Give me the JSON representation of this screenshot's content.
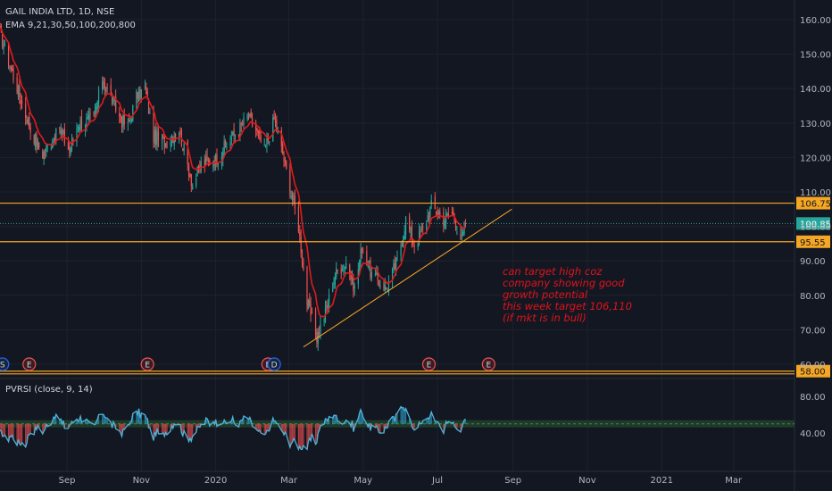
{
  "header": {
    "title": "GAIL INDIA LTD, 1D, NSE",
    "indicator": "EMA 9,21,30,50,100,200,800"
  },
  "colors": {
    "background": "#131722",
    "up": "#26a69a",
    "down": "#ef5350",
    "ema": "#e01a1a",
    "level_line": "#f5a623",
    "current_price": "#26a69a",
    "rsi_line": "#4fb3d9",
    "annotation": "#e0131b"
  },
  "annotation": {
    "lines": [
      "can target high coz",
      "company showing good",
      "growth potential",
      "this week target 106,110",
      "(if mkt is in bull)"
    ]
  },
  "events": [
    {
      "label": "S",
      "date": "2019-07-10"
    },
    {
      "label": "E",
      "date": "2019-08-01"
    },
    {
      "label": "E",
      "date": "2019-11-06"
    },
    {
      "label": "E",
      "date": "2020-02-13"
    },
    {
      "label": "D",
      "date": "2020-02-18"
    },
    {
      "label": "E",
      "date": "2020-06-24"
    },
    {
      "label": "E",
      "date": "2020-08-12"
    }
  ],
  "chart_data": [
    {
      "type": "candlestick",
      "title": "GAIL INDIA LTD, 1D, NSE",
      "x_tick_labels": [
        "Sep",
        "Nov",
        "2020",
        "Mar",
        "May",
        "Jul",
        "Sep",
        "Nov",
        "2021",
        "Mar"
      ],
      "x_tick_dates": [
        "2019-09-01",
        "2019-11-01",
        "2020-01-01",
        "2020-03-01",
        "2020-05-01",
        "2020-07-01",
        "2020-09-01",
        "2020-11-01",
        "2021-01-01",
        "2021-03-01"
      ],
      "x_range": [
        "2019-07-08",
        "2021-04-20"
      ],
      "y_tick_labels": [
        "60.00",
        "70.00",
        "80.00",
        "90.00",
        "100.00",
        "110.00",
        "120.00",
        "130.00",
        "140.00",
        "150.00",
        "160.00"
      ],
      "ylim": [
        57,
        163
      ],
      "price_path": [
        [
          "2019-07-08",
          156
        ],
        [
          "2019-07-22",
          140
        ],
        [
          "2019-08-02",
          128
        ],
        [
          "2019-08-12",
          121
        ],
        [
          "2019-08-26",
          128
        ],
        [
          "2019-09-03",
          122
        ],
        [
          "2019-09-10",
          130
        ],
        [
          "2019-09-23",
          131
        ],
        [
          "2019-09-30",
          143
        ],
        [
          "2019-10-15",
          131
        ],
        [
          "2019-10-21",
          129
        ],
        [
          "2019-10-28",
          138
        ],
        [
          "2019-11-04",
          140
        ],
        [
          "2019-11-11",
          126
        ],
        [
          "2019-11-20",
          124
        ],
        [
          "2019-12-02",
          128
        ],
        [
          "2019-12-13",
          112
        ],
        [
          "2019-12-20",
          118
        ],
        [
          "2020-01-03",
          120
        ],
        [
          "2020-01-10",
          124
        ],
        [
          "2020-01-20",
          128
        ],
        [
          "2020-01-27",
          132
        ],
        [
          "2020-02-03",
          128
        ],
        [
          "2020-02-10",
          122
        ],
        [
          "2020-02-18",
          131
        ],
        [
          "2020-02-25",
          121
        ],
        [
          "2020-03-04",
          108
        ],
        [
          "2020-03-09",
          100
        ],
        [
          "2020-03-16",
          78
        ],
        [
          "2020-03-24",
          68
        ],
        [
          "2020-03-31",
          75
        ],
        [
          "2020-04-08",
          86
        ],
        [
          "2020-04-17",
          90
        ],
        [
          "2020-04-24",
          82
        ],
        [
          "2020-04-30",
          94
        ],
        [
          "2020-05-08",
          86
        ],
        [
          "2020-05-20",
          82
        ],
        [
          "2020-05-29",
          90
        ],
        [
          "2020-06-05",
          102
        ],
        [
          "2020-06-12",
          95
        ],
        [
          "2020-06-19",
          99
        ],
        [
          "2020-06-26",
          106
        ],
        [
          "2020-07-06",
          102
        ],
        [
          "2020-07-13",
          104
        ],
        [
          "2020-07-21",
          96
        ],
        [
          "2020-07-24",
          100.85
        ]
      ],
      "ema_label": "EMA 9,21,30,50,100,200,800",
      "horizontal_levels": [
        {
          "value": 106.75,
          "label": "106.75"
        },
        {
          "value": 95.55,
          "label": "95.55"
        },
        {
          "value": 58.0,
          "label": "58.00"
        },
        {
          "value": 57.2,
          "label": ""
        }
      ],
      "current_price": {
        "value": 100.85,
        "label": "100.85"
      },
      "trendline": {
        "start": [
          "2020-03-13",
          65
        ],
        "end": [
          "2020-08-31",
          105
        ]
      }
    },
    {
      "type": "line",
      "title": "PVRSI (close, 9, 14)",
      "y_tick_labels": [
        "40.00",
        "80.00"
      ],
      "ylim": [
        18,
        92
      ],
      "reference_level": 50
    }
  ]
}
